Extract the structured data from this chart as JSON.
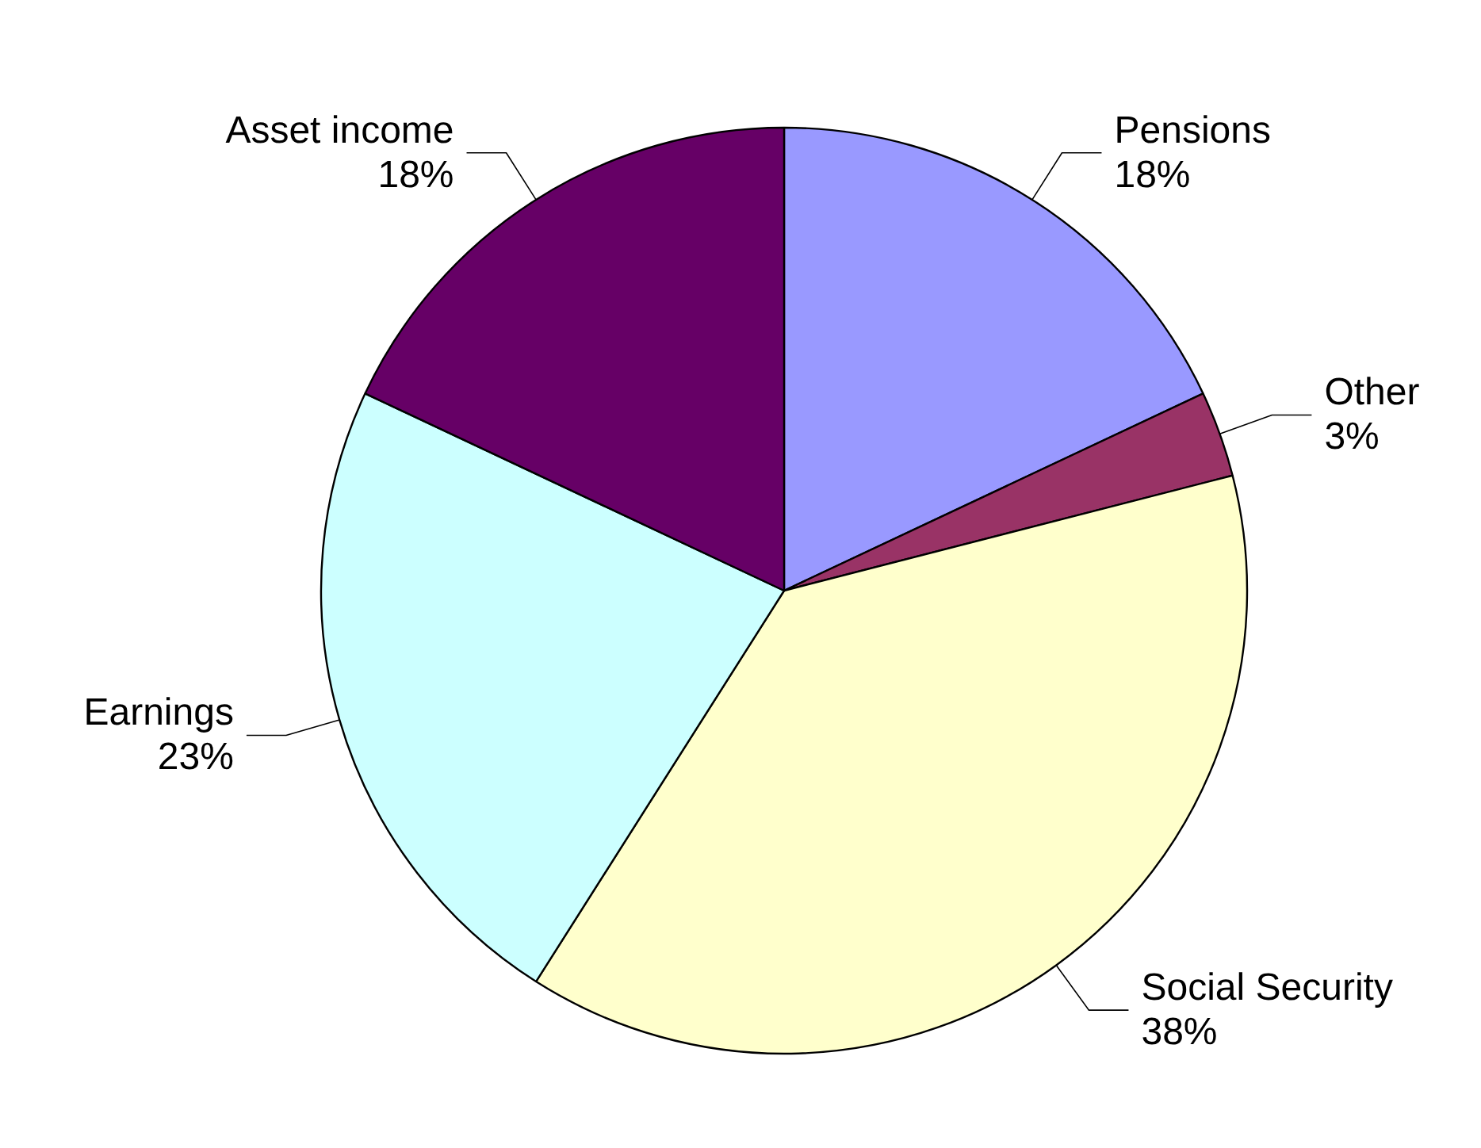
{
  "chart_data": {
    "type": "pie",
    "categories": [
      "Pensions",
      "Other",
      "Social Security",
      "Earnings",
      "Asset income"
    ],
    "values": [
      18,
      3,
      38,
      23,
      18
    ],
    "value_labels": [
      "18%",
      "3%",
      "38%",
      "23%",
      "18%"
    ],
    "colors": [
      "#9999ff",
      "#993366",
      "#ffffcc",
      "#ccffff",
      "#660066"
    ]
  }
}
